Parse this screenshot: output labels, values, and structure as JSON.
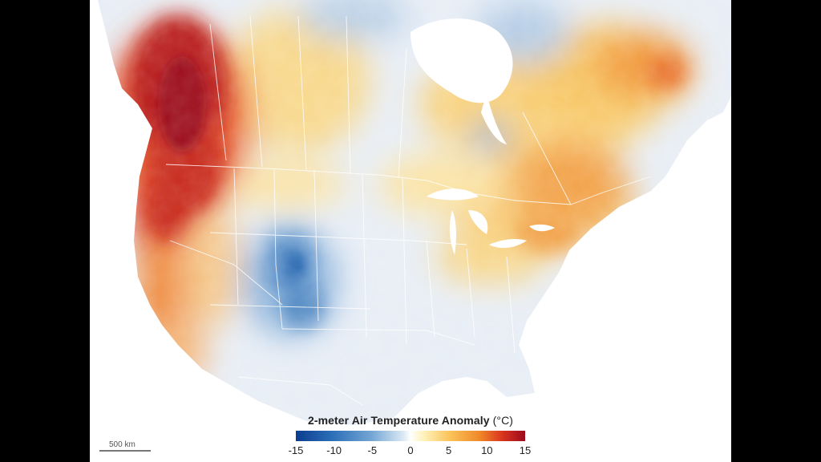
{
  "legend": {
    "title": "2-meter Air Temperature Anomaly",
    "unit": "(°C)",
    "ticks": [
      "-15",
      "-10",
      "-5",
      "0",
      "5",
      "10",
      "15"
    ],
    "colors": {
      "cold_max": "#0b3d8f",
      "cold": "#74a6d4",
      "neutral": "#ffffff",
      "warm": "#fbc45a",
      "hot": "#f08a2a",
      "hot_max": "#9c0a1e"
    }
  },
  "scale_bar": {
    "label": "500 km"
  }
}
